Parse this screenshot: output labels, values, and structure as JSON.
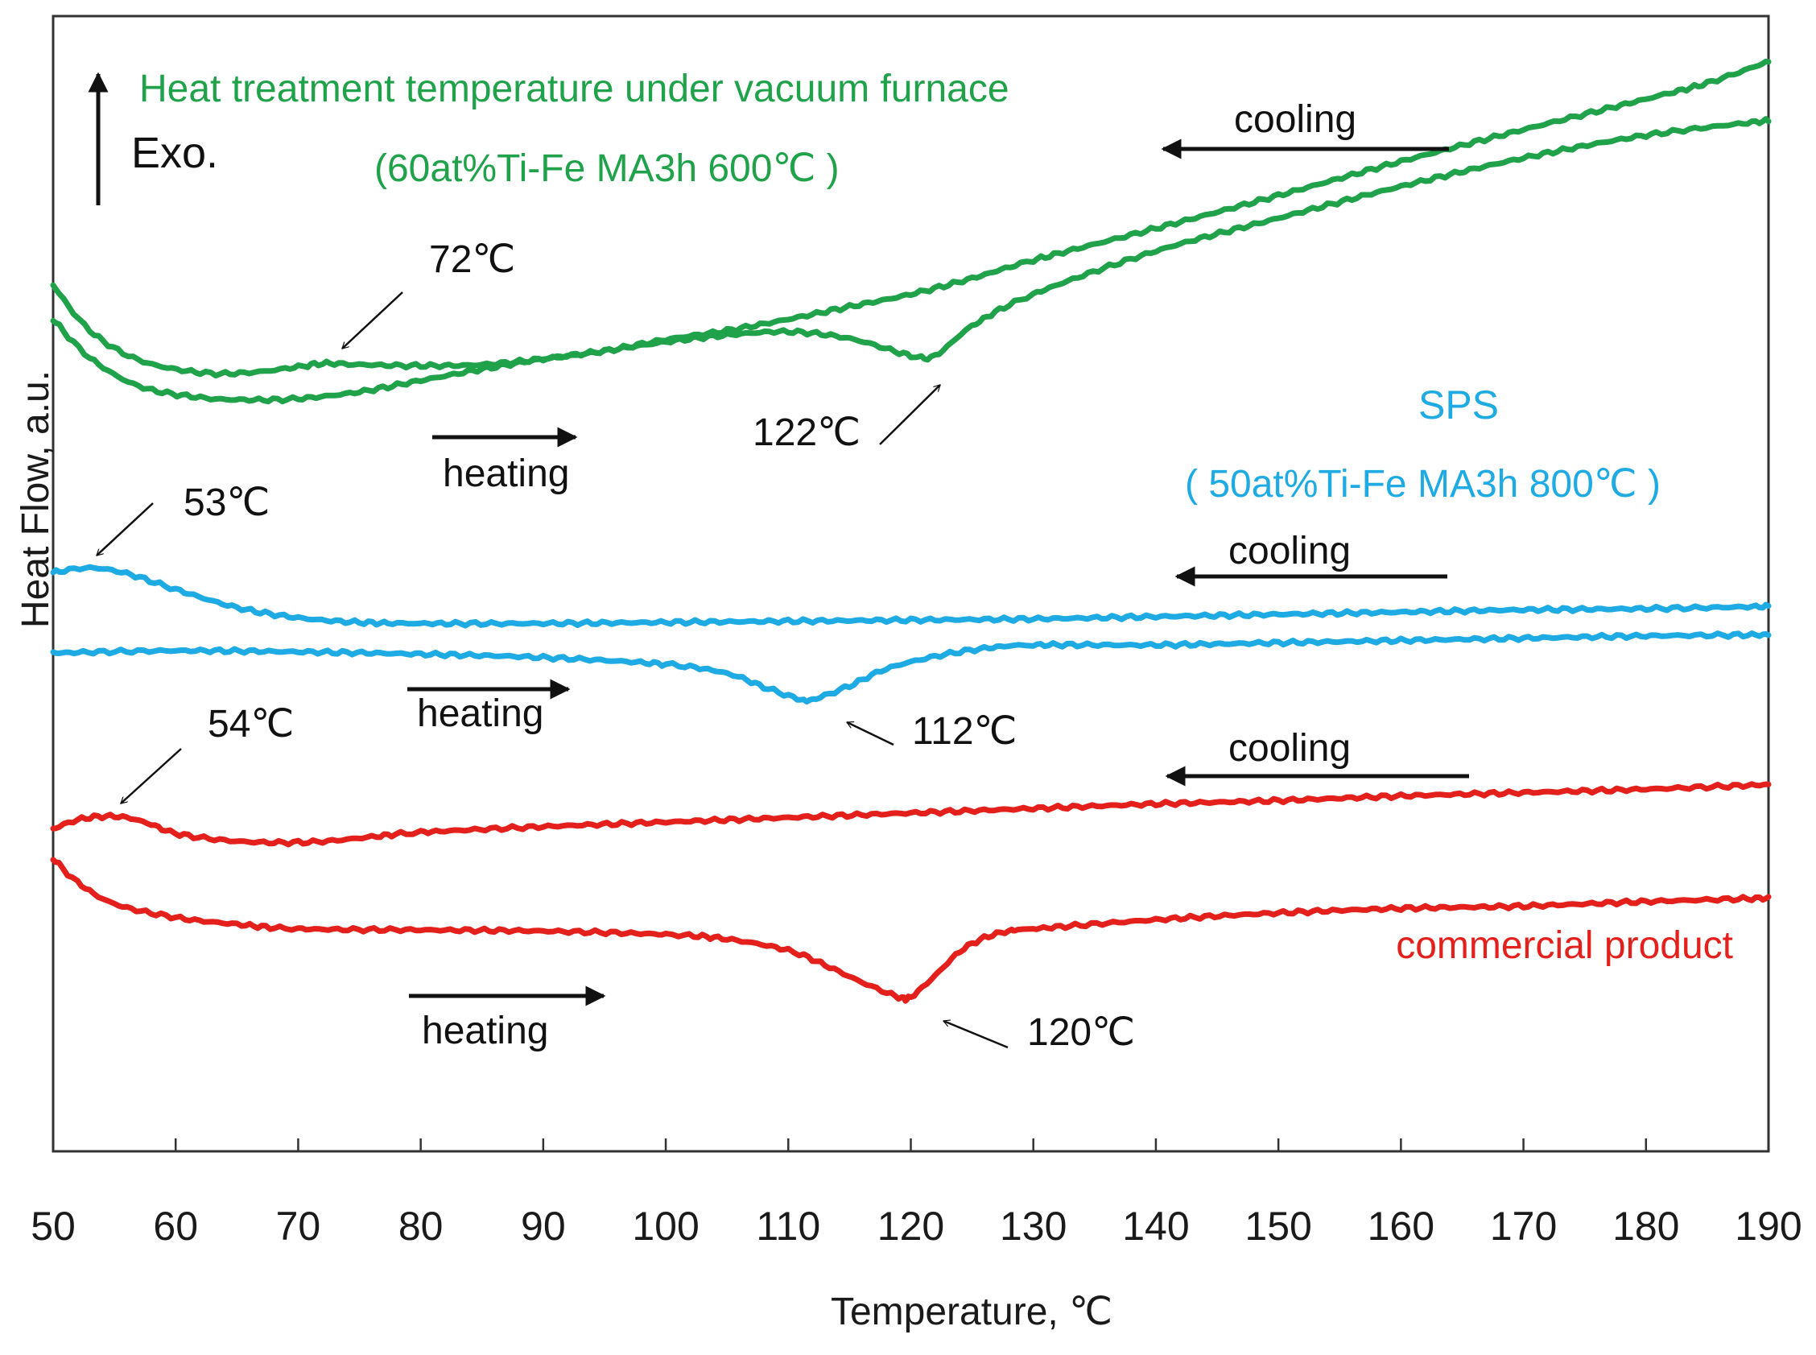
{
  "chart_data": {
    "type": "line",
    "title": "",
    "xlabel": "Temperature, ℃",
    "ylabel": "Heat Flow, a.u.",
    "xlim": [
      50,
      190
    ],
    "ylim": [
      0,
      100
    ],
    "xticks": [
      50,
      60,
      70,
      80,
      90,
      100,
      110,
      120,
      130,
      140,
      150,
      160,
      170,
      180,
      190
    ],
    "grid": false,
    "exo_label": "Exo.",
    "colors": {
      "green": "#1fa24a",
      "blue": "#1eaae3",
      "red": "#e3201c",
      "black": "#111111"
    },
    "groups": [
      {
        "name": "Heat treatment temperature under vacuum furnace",
        "subtitle": "(60at%Ti-Fe MA3h 600℃ )",
        "color": "#1fa24a",
        "series": [
          {
            "name": "cooling",
            "x": [
              50,
              53,
              57,
              62,
              66,
              70,
              72,
              75,
              80,
              85,
              90,
              95,
              100,
              105,
              110,
              115,
              120,
              125,
              130,
              140,
              150,
              160,
              170,
              180,
              185,
              190
            ],
            "y": [
              76.3,
              72.3,
              69.7,
              68.6,
              68.6,
              69.1,
              69.4,
              69.3,
              69.2,
              69.3,
              69.8,
              70.5,
              71.5,
              72.3,
              73.3,
              74.4,
              75.5,
              76.9,
              78.5,
              81.3,
              84.2,
              87.2,
              90.0,
              92.7,
              94.1,
              96.0
            ]
          },
          {
            "name": "heating",
            "x": [
              50,
              53,
              57,
              62,
              66,
              70,
              75,
              80,
              85,
              90,
              95,
              100,
              105,
              110,
              115,
              120,
              122,
              125,
              130,
              140,
              150,
              160,
              170,
              180,
              190
            ],
            "y": [
              73.3,
              69.9,
              67.4,
              66.4,
              66.2,
              66.3,
              66.9,
              67.9,
              68.9,
              69.8,
              70.5,
              71.3,
              71.9,
              72.2,
              71.6,
              70.1,
              70.1,
              72.7,
              75.5,
              79.3,
              82.2,
              85.0,
              87.5,
              89.5,
              90.8
            ]
          }
        ],
        "annotations": [
          {
            "text": "72℃",
            "x": 72,
            "y": 69.3
          },
          {
            "text": "122℃",
            "x": 122,
            "y": 70.1
          }
        ],
        "direction_labels": [
          "cooling",
          "heating"
        ]
      },
      {
        "name": "SPS",
        "subtitle": "( 50at%Ti-Fe MA3h 800℃ )",
        "color": "#1eaae3",
        "series": [
          {
            "name": "cooling",
            "x": [
              50,
              53,
              56,
              60,
              65,
              70,
              75,
              80,
              90,
              100,
              110,
              120,
              130,
              140,
              150,
              160,
              170,
              180,
              190
            ],
            "y": [
              51.0,
              51.4,
              50.9,
              49.5,
              47.9,
              47.0,
              46.6,
              46.5,
              46.5,
              46.6,
              46.7,
              46.8,
              46.9,
              47.1,
              47.3,
              47.5,
              47.7,
              47.8,
              48.0
            ]
          },
          {
            "name": "heating",
            "x": [
              50,
              60,
              70,
              80,
              90,
              100,
              105,
              108,
              111,
              112,
              115,
              118,
              122,
              126,
              130,
              140,
              150,
              160,
              170,
              180,
              190
            ],
            "y": [
              43.9,
              44.1,
              44.0,
              43.8,
              43.5,
              42.9,
              42.1,
              40.9,
              39.8,
              39.8,
              41.0,
              42.5,
              43.6,
              44.3,
              44.6,
              44.6,
              44.8,
              45.0,
              45.2,
              45.4,
              45.5
            ]
          }
        ],
        "annotations": [
          {
            "text": "53℃",
            "x": 53,
            "y": 51.4
          },
          {
            "text": "112℃",
            "x": 112,
            "y": 39.8
          }
        ],
        "direction_labels": [
          "cooling",
          "heating"
        ]
      },
      {
        "name": "commercial product",
        "subtitle": "",
        "color": "#e3201c",
        "series": [
          {
            "name": "cooling",
            "x": [
              50,
              52,
              54,
              56,
              58,
              60,
              64,
              68,
              72,
              76,
              80,
              90,
              100,
              110,
              120,
              130,
              140,
              150,
              160,
              170,
              180,
              190
            ],
            "y": [
              28.4,
              29.2,
              29.5,
              29.4,
              28.8,
              28.0,
              27.4,
              27.2,
              27.3,
              27.7,
              28.1,
              28.6,
              29.0,
              29.4,
              29.8,
              30.2,
              30.6,
              30.9,
              31.3,
              31.6,
              31.9,
              32.3
            ]
          },
          {
            "name": "heating",
            "x": [
              50,
              52,
              55,
              60,
              65,
              70,
              80,
              90,
              100,
              105,
              110,
              113,
              116,
              119,
              120,
              122,
              124,
              126,
              128,
              130,
              140,
              150,
              160,
              170,
              180,
              190
            ],
            "y": [
              25.8,
              23.7,
              21.8,
              20.6,
              20.0,
              19.6,
              19.5,
              19.4,
              19.1,
              18.7,
              17.7,
              16.4,
              14.9,
              13.6,
              13.6,
              15.5,
              17.6,
              18.8,
              19.4,
              19.6,
              20.4,
              21.0,
              21.4,
              21.6,
              22.0,
              22.3
            ]
          }
        ],
        "annotations": [
          {
            "text": "54℃",
            "x": 54,
            "y": 29.5
          },
          {
            "text": "120℃",
            "x": 120,
            "y": 13.6
          }
        ],
        "direction_labels": [
          "cooling",
          "heating"
        ]
      }
    ]
  }
}
